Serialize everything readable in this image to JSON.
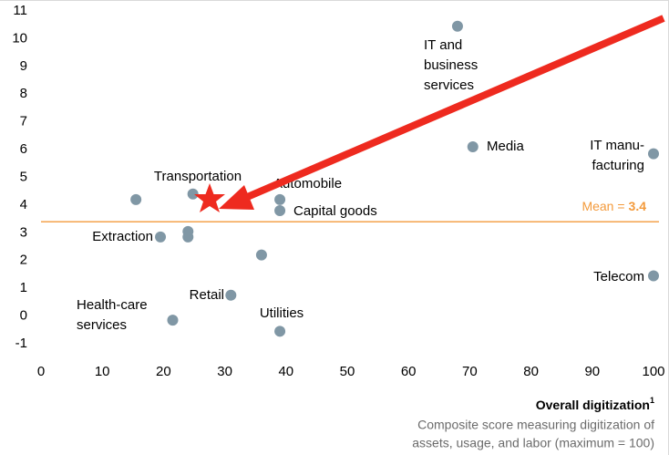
{
  "chart_data": {
    "type": "scatter",
    "x": [
      15.5,
      24.8,
      19.5,
      24,
      24,
      21.5,
      31,
      36,
      39,
      39,
      39,
      68,
      70.5,
      100,
      100
    ],
    "values": [
      4.2,
      4.4,
      2.85,
      3.05,
      2.85,
      -0.15,
      0.75,
      2.2,
      4.2,
      3.8,
      -0.55,
      10.45,
      6.1,
      5.85,
      1.45
    ],
    "point_labels": [
      null,
      "Transportation",
      "Extraction",
      null,
      null,
      [
        "Health-care",
        "services"
      ],
      "Retail",
      null,
      "Automobile",
      "Capital goods",
      "Utilities",
      [
        "IT and",
        "business",
        "services"
      ],
      "Media",
      [
        "IT manu-",
        "facturing"
      ],
      "Telecom"
    ],
    "color": "#8097a5",
    "xlim": [
      0,
      100
    ],
    "xticks": [
      0,
      10,
      20,
      30,
      40,
      50,
      60,
      70,
      80,
      90,
      100
    ],
    "ylim": [
      -1,
      11
    ],
    "yticks": [
      -1,
      0,
      1,
      2,
      3,
      4,
      5,
      6,
      7,
      8,
      9,
      10,
      11
    ],
    "mean": 3.4,
    "mean_label": "Mean =",
    "mean_color": "#f39a3b",
    "x_label": "Overall digitization",
    "x_label_note": "1",
    "x_sublabel": [
      "Composite score measuring digitization of",
      "assets, usage, and labor (maximum = 100)"
    ]
  }
}
